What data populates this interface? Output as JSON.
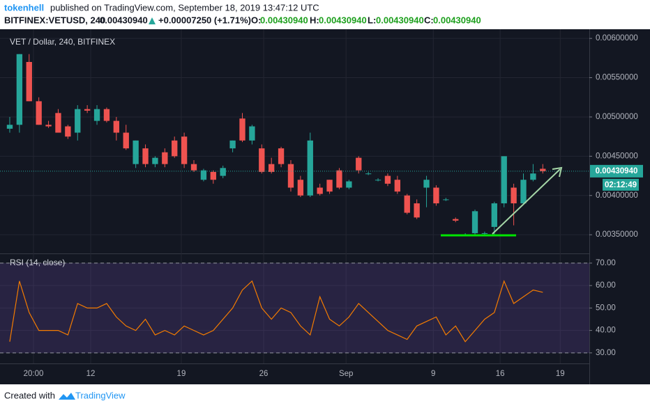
{
  "header": {
    "user": "tokenhell",
    "published": "published on TradingView.com, September 18, 2019 13:47:12 UTC",
    "symbol": "BITFINEX:VETUSD, 240",
    "price": "0.00430940",
    "change": "+0.00007250 (+1.71%)",
    "ohlc": [
      {
        "label": "O:",
        "value": "0.00430940"
      },
      {
        "label": "H:",
        "value": "0.00430940"
      },
      {
        "label": "L:",
        "value": "0.00430940"
      },
      {
        "label": "C:",
        "value": "0.00430940"
      }
    ]
  },
  "chart_data": [
    {
      "type": "candlestick",
      "title": "VET / Dollar, 240, BITFINEX",
      "open": [
        0.00485,
        0.0049,
        0.0057,
        0.0052,
        0.0049,
        0.00505,
        0.00488,
        0.0048,
        0.0051,
        0.00495,
        0.0051,
        0.00495,
        0.0048,
        0.0044,
        0.0046,
        0.0044,
        0.00455,
        0.0047,
        0.00475,
        0.0044,
        0.0042,
        0.0043,
        0.00425,
        0.0046,
        0.00498,
        0.0047,
        0.0046,
        0.0044,
        0.0046,
        0.0044,
        0.0042,
        0.004,
        0.0041,
        0.0042,
        0.00432,
        0.0041,
        0.00448,
        0.00428,
        0.0042,
        0.00425,
        0.0042,
        0.004,
        0.0039,
        0.0041,
        0.0041,
        0.00395,
        0.0037,
        0.0035,
        0.00352,
        0.00352,
        0.0036,
        0.0039,
        0.0041,
        0.0039,
        0.0042,
        0.00434
      ],
      "high": [
        0.005,
        0.0058,
        0.0058,
        0.00525,
        0.00495,
        0.0051,
        0.0049,
        0.00515,
        0.00515,
        0.00515,
        0.00512,
        0.005,
        0.0049,
        0.0047,
        0.00465,
        0.0045,
        0.0046,
        0.00475,
        0.0048,
        0.00445,
        0.00434,
        0.00432,
        0.00438,
        0.0047,
        0.00505,
        0.0049,
        0.00465,
        0.00448,
        0.00462,
        0.00445,
        0.00425,
        0.0048,
        0.00415,
        0.0042,
        0.00435,
        0.0042,
        0.0045,
        0.0043,
        0.00422,
        0.00428,
        0.00425,
        0.00402,
        0.00395,
        0.00425,
        0.00413,
        0.00397,
        0.00372,
        0.00352,
        0.00382,
        0.00354,
        0.00392,
        0.0045,
        0.00415,
        0.00428,
        0.0044,
        0.0044
      ],
      "low": [
        0.0048,
        0.0048,
        0.0052,
        0.0049,
        0.00486,
        0.0048,
        0.00472,
        0.0047,
        0.00505,
        0.0049,
        0.00493,
        0.0047,
        0.00458,
        0.00435,
        0.00436,
        0.00436,
        0.00436,
        0.00448,
        0.00435,
        0.0043,
        0.00418,
        0.00415,
        0.00422,
        0.00455,
        0.00468,
        0.00465,
        0.00428,
        0.00428,
        0.00436,
        0.00405,
        0.00398,
        0.00398,
        0.004,
        0.00402,
        0.00408,
        0.00408,
        0.00428,
        0.00426,
        0.00418,
        0.00412,
        0.00402,
        0.00376,
        0.0037,
        0.00385,
        0.00387,
        0.00393,
        0.00366,
        0.00348,
        0.00348,
        0.0035,
        0.00348,
        0.00385,
        0.00362,
        0.00388,
        0.00418,
        0.00428
      ],
      "close": [
        0.0049,
        0.0058,
        0.0052,
        0.0049,
        0.00488,
        0.0048,
        0.00475,
        0.0051,
        0.00508,
        0.0051,
        0.00495,
        0.0048,
        0.0046,
        0.0047,
        0.0044,
        0.00448,
        0.0044,
        0.0045,
        0.0044,
        0.00432,
        0.00432,
        0.0042,
        0.00435,
        0.0047,
        0.0047,
        0.00488,
        0.0043,
        0.0043,
        0.0044,
        0.0041,
        0.004,
        0.0047,
        0.00402,
        0.00405,
        0.0041,
        0.00418,
        0.00432,
        0.00428,
        0.0042,
        0.00415,
        0.00405,
        0.00378,
        0.00372,
        0.0042,
        0.0039,
        0.00395,
        0.00368,
        0.0035,
        0.0038,
        0.00352,
        0.0039,
        0.0045,
        0.0039,
        0.0042,
        0.00428,
        0.0043094
      ],
      "up_color": "#26a69a",
      "down_color": "#ef5350",
      "last_label": "0.00430940",
      "countdown": "02:12:49",
      "xlim": [
        -0.43,
        59.8
      ],
      "xticks": [
        {
          "value": 2.45,
          "label": "20:00"
        },
        {
          "value": 8.35,
          "label": "12"
        },
        {
          "value": 17.7,
          "label": "19"
        },
        {
          "value": 26.2,
          "label": "26"
        },
        {
          "value": 34.7,
          "label": "Sep"
        },
        {
          "value": 43.7,
          "label": "9"
        },
        {
          "value": 50.6,
          "label": "16"
        },
        {
          "value": 56.8,
          "label": "19"
        }
      ],
      "ylim": [
        0.00328,
        0.00609
      ],
      "yticks": [
        {
          "value": 0.006,
          "label": "0.00600000"
        },
        {
          "value": 0.0055,
          "label": "0.00550000"
        },
        {
          "value": 0.005,
          "label": "0.00500000"
        },
        {
          "value": 0.0045,
          "label": "0.00450000"
        },
        {
          "value": 0.004,
          "label": "0.00400000"
        },
        {
          "value": 0.0035,
          "label": "0.00350000"
        }
      ],
      "grid": true
    },
    {
      "type": "line",
      "title": "RSI (14, close)",
      "color": "#f57c00",
      "values": [
        35,
        62,
        48,
        40,
        40,
        40,
        38,
        52,
        50,
        50,
        52,
        46,
        42,
        40,
        45,
        38,
        40,
        38,
        42,
        40,
        38,
        40,
        45,
        50,
        58,
        62,
        50,
        45,
        50,
        48,
        42,
        38,
        55,
        45,
        42,
        46,
        52,
        48,
        44,
        40,
        38,
        36,
        42,
        44,
        46,
        38,
        42,
        35,
        40,
        45,
        48,
        62,
        52,
        55,
        58,
        57
      ],
      "ylim": [
        25.3,
        74
      ],
      "yticks": [
        {
          "value": 70,
          "label": "70.00"
        },
        {
          "value": 60,
          "label": "60.00"
        },
        {
          "value": 50,
          "label": "50.00"
        },
        {
          "value": 40,
          "label": "40.00"
        },
        {
          "value": 30,
          "label": "30.00"
        }
      ],
      "band": [
        30,
        70
      ],
      "band_color": "#7e57c2",
      "grid": true
    }
  ],
  "footer": {
    "created": "Created with",
    "brand": "TradingView"
  }
}
